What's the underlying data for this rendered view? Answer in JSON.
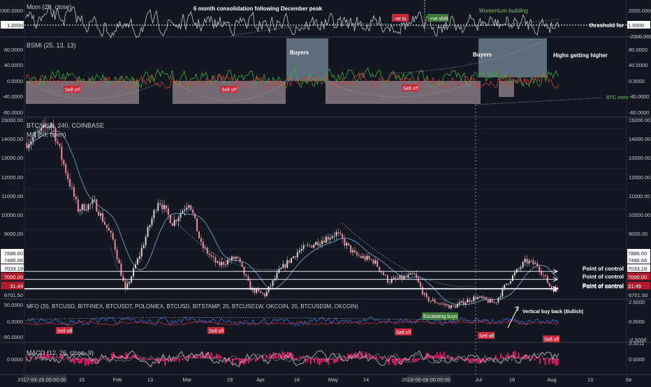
{
  "colors": {
    "background": "#131722",
    "separator": "#3a3e4a",
    "axis_text": "#c9ccd3",
    "grid": "#1f2430",
    "mom_line": "#c7c7c7",
    "bsmi_green": "#3fae3a",
    "bsmi_red": "#d33a3a",
    "box_fill": "#c9b0b8",
    "buyers_fill": "#8fa6b8",
    "candle_up": "#d6d6d6",
    "candle_down": "#f0899c",
    "ma_line": "#6fa0c8",
    "mfo_line": "#3f6fd8",
    "mfo_red": "#c8283a",
    "macd_hist": "#e8186a",
    "macd_line": "#c7c7c7",
    "label_red": "#c8283a",
    "label_green": "#3f7a3a",
    "poc_line": "#ffffff",
    "annotation_green": "#7fbf5f",
    "price_label_bg": "#b01b2a"
  },
  "x_axis": {
    "ticks": [
      "2017-03-25 00:00:00",
      "15",
      "Feb",
      "13",
      "Mar",
      "19",
      "Apr",
      "16",
      "May",
      "14",
      "2018-06-08 00:00:00",
      "Jul",
      "16",
      "Aug",
      "13",
      "Se"
    ]
  },
  "mom_pane": {
    "title": "Mom (20, close)",
    "left_values": [
      "2000.0000",
      "1.0000"
    ],
    "right_values": [
      "2000.0000",
      "1.0000",
      "-2000.0000"
    ],
    "threshold_label": "threshold for",
    "annotations": {
      "consolidation": "6 month consolidation following December peak",
      "ve_to": "-ve to",
      "ve_shift": "+ve shift",
      "momentum": "Momentum building"
    }
  },
  "bsmi_pane": {
    "title": "BSMI (25, 13, 13)",
    "left_values": [
      "80.0000",
      "40.0000",
      "0.0000",
      "-40.0000",
      "-80.0000"
    ],
    "right_values": [
      "80.0000",
      "40.0000",
      "0.0000",
      "-40.0000",
      "-80.0000"
    ],
    "sell_off": "Sell off",
    "buyers": "Buyers",
    "highs": "Highs getting higher",
    "btc_mom": "BTC mom"
  },
  "price_pane": {
    "title": "BTC/USD, 240, COINBASE",
    "subtitle": "MA (50, open)",
    "left_values": [
      "15000.00",
      "14000.00",
      "13000.00",
      "12000.00",
      "11000.00",
      "10000.00",
      "9000.00",
      "7886.60",
      "7486.66",
      "7033.19",
      "7000.00",
      "31.49",
      "6701.50"
    ],
    "right_values": [
      "15000.00",
      "14000.00",
      "13000.00",
      "12000.00",
      "11000.00",
      "10000.00",
      "9000.00",
      "7886.60",
      "7486.66",
      "7033.19",
      "7000.00",
      "31:49",
      "6701.50"
    ],
    "poc_label": "Point of control"
  },
  "mfo_pane": {
    "title": "MFO (20, BTCUSD, BITFINEX, BTCUSDT, POLONIEX, BTCUSD, BITSTAMP, 20, BTCUSD1W, OKCOIN, 20, BTCUSD3M, OKCOIN)",
    "left_values": [
      "50.0000",
      "0.0000",
      "-50.0000"
    ],
    "right_values": [
      "2.5000",
      "0.0000",
      "-2.5000"
    ],
    "sell_off": "Sell off",
    "escalating": "Escalating buys",
    "vertical": "Vertical buy back (Bullish)"
  },
  "macd_pane": {
    "title": "MACD (12, 26, close, 9)",
    "left_values": [
      "0.0000"
    ],
    "right_values": [
      "3.3211",
      "0.0000"
    ]
  },
  "chart_data": {
    "type": "candlestick",
    "title": "BTC/USD, 240, COINBASE",
    "x_range": [
      "2017-12-26",
      "2018-08-08"
    ],
    "y_range": [
      6500,
      15600
    ],
    "price_path": [
      [
        "2017-12-26",
        14300
      ],
      [
        "2018-01-06",
        15300
      ],
      [
        "2018-01-10",
        13600
      ],
      [
        "2018-01-17",
        11000
      ],
      [
        "2018-01-24",
        11300
      ],
      [
        "2018-02-01",
        9400
      ],
      [
        "2018-02-06",
        6900
      ],
      [
        "2018-02-12",
        8700
      ],
      [
        "2018-02-20",
        11500
      ],
      [
        "2018-02-26",
        10300
      ],
      [
        "2018-03-05",
        11400
      ],
      [
        "2018-03-10",
        9200
      ],
      [
        "2018-03-17",
        8200
      ],
      [
        "2018-03-25",
        8600
      ],
      [
        "2018-03-31",
        7000
      ],
      [
        "2018-04-06",
        6700
      ],
      [
        "2018-04-12",
        7900
      ],
      [
        "2018-04-20",
        8900
      ],
      [
        "2018-04-29",
        9400
      ],
      [
        "2018-05-06",
        9800
      ],
      [
        "2018-05-14",
        8700
      ],
      [
        "2018-05-22",
        8400
      ],
      [
        "2018-05-28",
        7400
      ],
      [
        "2018-06-08",
        7700
      ],
      [
        "2018-06-13",
        6500
      ],
      [
        "2018-06-24",
        6100
      ],
      [
        "2018-07-04",
        6600
      ],
      [
        "2018-07-12",
        6300
      ],
      [
        "2018-07-17",
        7300
      ],
      [
        "2018-07-25",
        8400
      ],
      [
        "2018-07-30",
        8200
      ],
      [
        "2018-08-05",
        7000
      ]
    ],
    "points_of_control": [
      7886.6,
      7486.66,
      7033.19,
      7000.0
    ],
    "indicators": [
      "Mom (20, close)",
      "BSMI (25, 13, 13)",
      "MA (50, open)",
      "MFO",
      "MACD (12, 26, close, 9)"
    ]
  }
}
